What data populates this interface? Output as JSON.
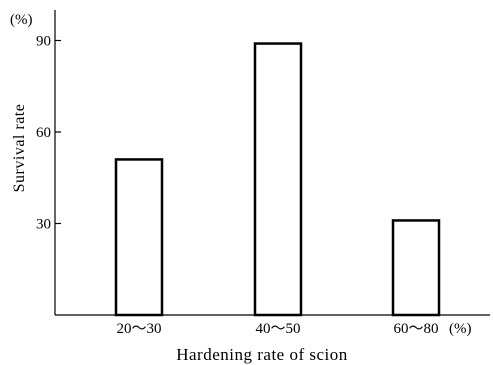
{
  "chart_data": {
    "type": "bar",
    "title": "",
    "categories": [
      "20～30",
      "40～50",
      "60～80"
    ],
    "values": [
      51,
      89,
      31
    ],
    "xlabel": "Hardening rate of scion",
    "x_unit": "(%)",
    "ylabel": "Survival rate",
    "y_unit": "(%)",
    "ylim": [
      0,
      100
    ],
    "yticks": [
      30,
      60,
      90
    ],
    "grid": false,
    "legend": "none",
    "bar_fill": "#ffffff",
    "bar_stroke": "#000000"
  }
}
